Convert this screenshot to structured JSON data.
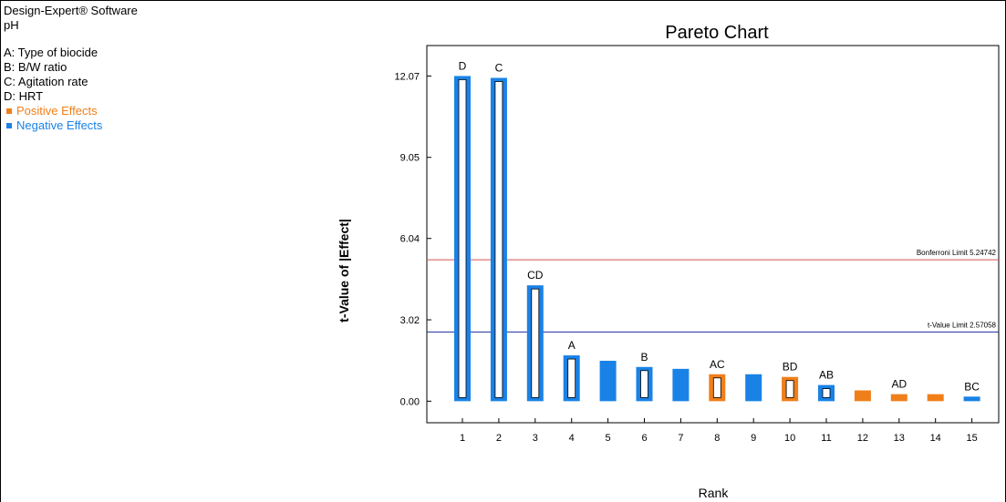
{
  "info": {
    "software": "Design-Expert® Software",
    "response": "pH",
    "factors": [
      "A: Type of biocide",
      "B: B/W ratio",
      "C: Agitation rate",
      "D: HRT"
    ],
    "legend": [
      {
        "label": "Positive Effects",
        "color": "#f07f1a"
      },
      {
        "label": "Negative Effects",
        "color": "#1a82e6"
      }
    ]
  },
  "chart_data": {
    "type": "bar",
    "title": "Pareto Chart",
    "xlabel": "Rank",
    "ylabel": "t-Value of |Effect|",
    "ylim": [
      -0.8,
      13.2
    ],
    "yticks": [
      "0.00",
      "3.02",
      "6.04",
      "9.05",
      "12.07"
    ],
    "ytick_values": [
      0,
      3.02,
      6.04,
      9.05,
      12.07
    ],
    "categories": [
      "1",
      "2",
      "3",
      "4",
      "5",
      "6",
      "7",
      "8",
      "9",
      "10",
      "11",
      "12",
      "13",
      "14",
      "15"
    ],
    "values": [
      12.07,
      12.0,
      4.3,
      1.7,
      1.5,
      1.27,
      1.2,
      1.0,
      1.0,
      0.9,
      0.6,
      0.4,
      0.26,
      0.26,
      0.17
    ],
    "bar_labels": [
      "D",
      "C",
      "CD",
      "A",
      "",
      "B",
      "",
      "AC",
      "",
      "BD",
      "AB",
      "",
      "AD",
      "",
      "BC"
    ],
    "effect_sign": [
      "negative",
      "negative",
      "negative",
      "negative",
      "negative",
      "negative",
      "negative",
      "positive",
      "negative",
      "positive",
      "negative",
      "positive",
      "positive",
      "positive",
      "negative"
    ],
    "hollow": [
      true,
      true,
      true,
      true,
      false,
      true,
      false,
      true,
      false,
      true,
      true,
      false,
      true,
      false,
      true
    ],
    "colors": {
      "positive": "#f07f1a",
      "negative": "#1a82e6",
      "bonferroni": "#d9534f",
      "tlimit": "#1f2f9c"
    },
    "limits": [
      {
        "name": "Bonferroni Limit 5.24742",
        "value": 5.24742,
        "kind": "bonferroni"
      },
      {
        "name": "t-Value Limit 2.57058",
        "value": 2.57058,
        "kind": "tlimit"
      }
    ]
  }
}
